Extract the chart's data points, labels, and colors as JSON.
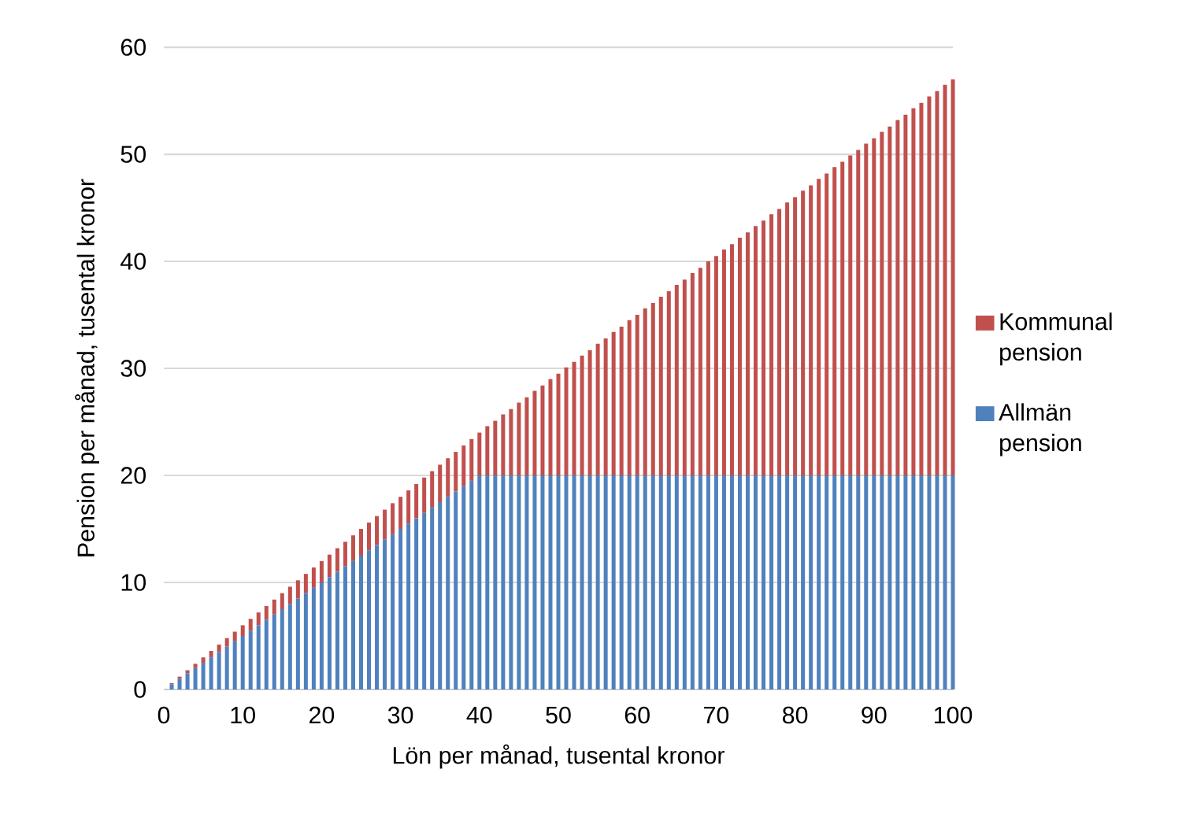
{
  "chart_data": {
    "type": "bar",
    "stacked": true,
    "xlabel": "Lön per månad, tusental kronor",
    "ylabel": "Pension per månad, tusental kronor",
    "x": [
      1,
      2,
      3,
      4,
      5,
      6,
      7,
      8,
      9,
      10,
      11,
      12,
      13,
      14,
      15,
      16,
      17,
      18,
      19,
      20,
      21,
      22,
      23,
      24,
      25,
      26,
      27,
      28,
      29,
      30,
      31,
      32,
      33,
      34,
      35,
      36,
      37,
      38,
      39,
      40,
      41,
      42,
      43,
      44,
      45,
      46,
      47,
      48,
      49,
      50,
      51,
      52,
      53,
      54,
      55,
      56,
      57,
      58,
      59,
      60,
      61,
      62,
      63,
      64,
      65,
      66,
      67,
      68,
      69,
      70,
      71,
      72,
      73,
      74,
      75,
      76,
      77,
      78,
      79,
      80,
      81,
      82,
      83,
      84,
      85,
      86,
      87,
      88,
      89,
      90,
      91,
      92,
      93,
      94,
      95,
      96,
      97,
      98,
      99,
      100
    ],
    "series": [
      {
        "name": "Allmän pension",
        "color": "#4f81bd",
        "values": [
          0.5,
          1,
          1.5,
          2,
          2.5,
          3,
          3.5,
          4,
          4.5,
          5,
          5.5,
          6,
          6.5,
          7,
          7.5,
          8,
          8.5,
          9,
          9.5,
          10,
          10.5,
          11,
          11.5,
          12,
          12.5,
          13,
          13.5,
          14,
          14.5,
          15,
          15.5,
          16,
          16.5,
          17,
          17.5,
          18,
          18.5,
          19,
          19.5,
          20,
          20,
          20,
          20,
          20,
          20,
          20,
          20,
          20,
          20,
          20,
          20,
          20,
          20,
          20,
          20,
          20,
          20,
          20,
          20,
          20,
          20,
          20,
          20,
          20,
          20,
          20,
          20,
          20,
          20,
          20,
          20,
          20,
          20,
          20,
          20,
          20,
          20,
          20,
          20,
          20,
          20,
          20,
          20,
          20,
          20,
          20,
          20,
          20,
          20,
          20,
          20,
          20,
          20,
          20,
          20,
          20,
          20,
          20,
          20,
          20
        ]
      },
      {
        "name": "Kommunal pension",
        "color": "#c0504d",
        "values": [
          0.1,
          0.2,
          0.3,
          0.4,
          0.5,
          0.6,
          0.7,
          0.8,
          0.9,
          1,
          1.1,
          1.2,
          1.3,
          1.4,
          1.5,
          1.6,
          1.7,
          1.8,
          1.9,
          2,
          2.1,
          2.2,
          2.3,
          2.4,
          2.5,
          2.6,
          2.7,
          2.8,
          2.9,
          3,
          3.1,
          3.2,
          3.3,
          3.4,
          3.5,
          3.6,
          3.7,
          3.8,
          3.9,
          4,
          4.6,
          5.1,
          5.7,
          6.2,
          6.8,
          7.3,
          7.9,
          8.4,
          9,
          9.5,
          10.1,
          10.6,
          11.2,
          11.7,
          12.3,
          12.8,
          13.4,
          13.9,
          14.5,
          15,
          15.6,
          16.1,
          16.7,
          17.2,
          17.8,
          18.3,
          18.9,
          19.4,
          20,
          20.5,
          21.1,
          21.6,
          22.2,
          22.7,
          23.3,
          23.8,
          24.4,
          24.9,
          25.5,
          26,
          26.6,
          27.1,
          27.7,
          28.2,
          28.8,
          29.3,
          29.9,
          30.4,
          31,
          31.5,
          32.1,
          32.6,
          33.2,
          33.7,
          34.3,
          34.8,
          35.4,
          35.9,
          36.5,
          37
        ]
      }
    ],
    "xlim": [
      0,
      100
    ],
    "xticks": [
      0,
      10,
      20,
      30,
      40,
      50,
      60,
      70,
      80,
      90,
      100
    ],
    "ylim": [
      0,
      60
    ],
    "yticks": [
      0,
      10,
      20,
      30,
      40,
      50,
      60
    ],
    "grid": "y",
    "legend": "right"
  }
}
